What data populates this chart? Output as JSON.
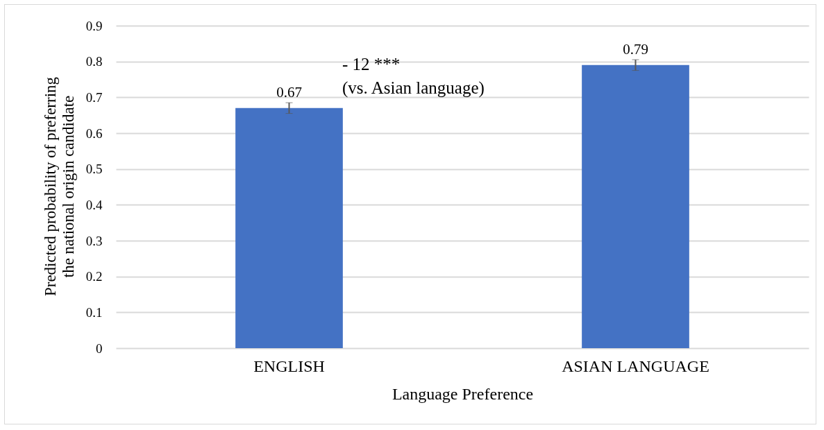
{
  "chart_data": {
    "type": "bar",
    "xlabel": "Language Preference",
    "ylabel": "Predicted probability of preferring the national origin candidate",
    "categories": [
      "ENGLISH",
      "ASIAN LANGUAGE"
    ],
    "values": [
      0.67,
      0.79
    ],
    "errors": [
      0.015,
      0.015
    ],
    "color": "#4472c4",
    "ylim": [
      0,
      0.9
    ],
    "yticks": [
      {
        "value": 0,
        "label": "0"
      },
      0.1,
      0.2,
      0.3,
      0.4,
      0.5,
      0.6,
      0.7,
      0.8,
      0.9
    ],
    "grid": "y",
    "data_labels": true,
    "annotations": [
      "- 12 ***\n(vs. Asian language)"
    ]
  }
}
